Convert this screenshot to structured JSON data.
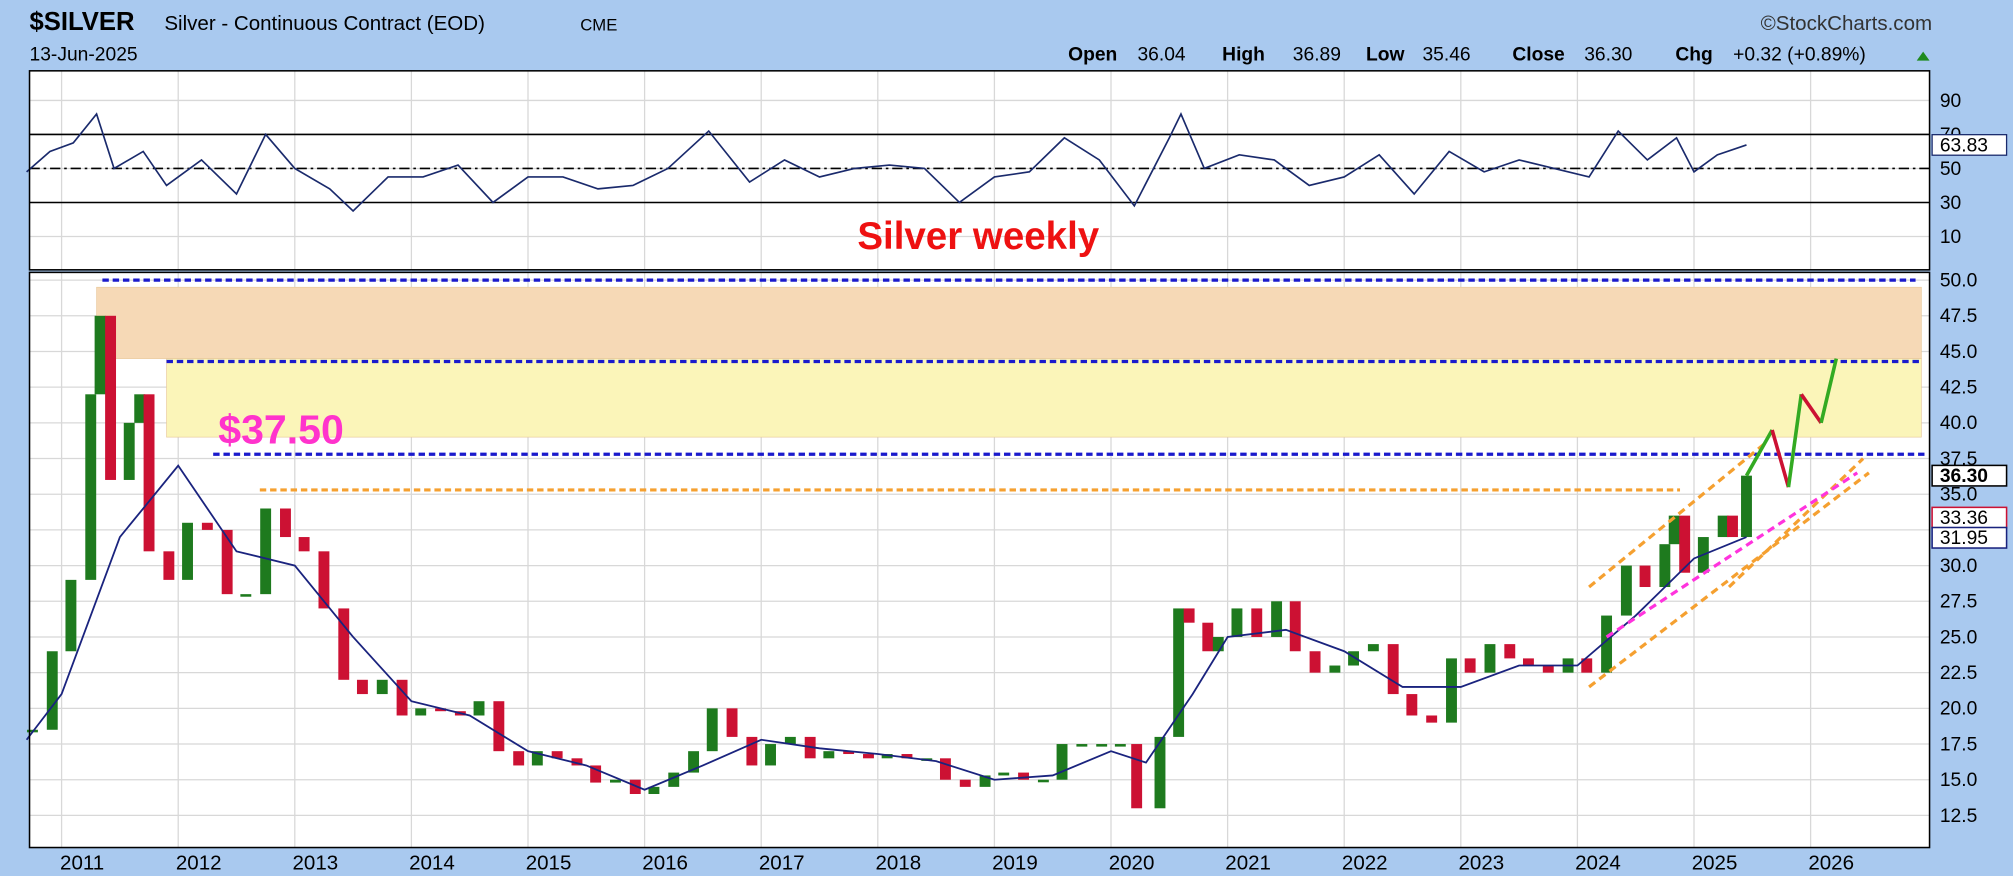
{
  "header": {
    "symbol": "$SILVER",
    "name": "Silver - Continuous Contract (EOD)",
    "exchange": "CME",
    "date": "13-Jun-2025",
    "source": "©StockCharts.com",
    "quote": [
      {
        "label": "Open",
        "value": "36.04"
      },
      {
        "label": "High",
        "value": "36.89"
      },
      {
        "label": "Low",
        "value": "35.46"
      },
      {
        "label": "Close",
        "value": "36.30"
      },
      {
        "label": "Chg",
        "value": "+0.32 (+0.89%)"
      }
    ]
  },
  "chart_data": [
    {
      "type": "line",
      "xlim": [
        2010.725,
        2027.02
      ],
      "xticks": [
        2011,
        2012,
        2013,
        2014,
        2015,
        2016,
        2017,
        2018,
        2019,
        2020,
        2021,
        2022,
        2023,
        2024,
        2025,
        2026
      ],
      "ylim": [
        -9.6,
        107.4
      ],
      "yticks": [
        10,
        30,
        50,
        70,
        90
      ],
      "grid": true,
      "x": [
        2010.7,
        2010.9,
        2011.1,
        2011.3,
        2011.45,
        2011.7,
        2011.9,
        2012.2,
        2012.5,
        2012.75,
        2013.0,
        2013.3,
        2013.5,
        2013.8,
        2014.1,
        2014.4,
        2014.7,
        2015.0,
        2015.3,
        2015.6,
        2015.9,
        2016.2,
        2016.55,
        2016.9,
        2017.2,
        2017.5,
        2017.8,
        2018.1,
        2018.4,
        2018.7,
        2019.0,
        2019.3,
        2019.6,
        2019.9,
        2020.2,
        2020.5,
        2020.6,
        2020.8,
        2021.1,
        2021.4,
        2021.7,
        2022.0,
        2022.3,
        2022.6,
        2022.9,
        2023.2,
        2023.5,
        2023.8,
        2024.1,
        2024.35,
        2024.6,
        2024.85,
        2025.0,
        2025.2,
        2025.45
      ],
      "series": [
        {
          "color": "#1a2a6c",
          "values": [
            48,
            60,
            65,
            82,
            50,
            60,
            40,
            55,
            35,
            70,
            50,
            38,
            25,
            45,
            45,
            52,
            30,
            45,
            45,
            38,
            40,
            50,
            72,
            42,
            55,
            45,
            50,
            52,
            50,
            30,
            45,
            48,
            68,
            55,
            28,
            68,
            82,
            50,
            58,
            55,
            40,
            45,
            58,
            35,
            60,
            48,
            55,
            50,
            45,
            72,
            55,
            68,
            48,
            58,
            63.83
          ]
        }
      ],
      "hlines": [
        {
          "value": 70,
          "style": "solid"
        },
        {
          "value": 30,
          "style": "solid"
        },
        {
          "value": 50,
          "style": "dashdot"
        }
      ],
      "last_label": {
        "value": 63.83,
        "color": "#1a2a6c"
      },
      "annotations": [
        {
          "text": "Silver weekly",
          "color": "#ee1111"
        }
      ]
    },
    {
      "type": "candlestick",
      "xlim": [
        2010.725,
        2027.02
      ],
      "xticks": [
        2011,
        2012,
        2013,
        2014,
        2015,
        2016,
        2017,
        2018,
        2019,
        2020,
        2021,
        2022,
        2023,
        2024,
        2025,
        2026
      ],
      "ylim": [
        10.25,
        50.54
      ],
      "yticks": [
        12.5,
        {
          "value": 15,
          "label": "15.0"
        },
        17.5,
        {
          "value": 20,
          "label": "20.0"
        },
        22.5,
        {
          "value": 25,
          "label": "25.0"
        },
        27.5,
        {
          "value": 30,
          "label": "30.0"
        },
        32.5,
        {
          "value": 35,
          "label": "35.0"
        },
        37.5,
        {
          "value": 40,
          "label": "40.0"
        },
        42.5,
        {
          "value": 45,
          "label": "45.0"
        },
        47.5,
        {
          "value": 50,
          "label": "50.0"
        }
      ],
      "grid": true,
      "x": [
        2010.75,
        2010.92,
        2011.08,
        2011.25,
        2011.33,
        2011.42,
        2011.58,
        2011.67,
        2011.75,
        2011.92,
        2012.08,
        2012.25,
        2012.42,
        2012.58,
        2012.75,
        2012.92,
        2013.08,
        2013.25,
        2013.42,
        2013.58,
        2013.75,
        2013.92,
        2014.08,
        2014.25,
        2014.42,
        2014.58,
        2014.75,
        2014.92,
        2015.08,
        2015.25,
        2015.42,
        2015.58,
        2015.75,
        2015.92,
        2016.08,
        2016.25,
        2016.42,
        2016.58,
        2016.75,
        2016.92,
        2017.08,
        2017.25,
        2017.42,
        2017.58,
        2017.75,
        2017.92,
        2018.08,
        2018.25,
        2018.42,
        2018.58,
        2018.75,
        2018.92,
        2019.08,
        2019.25,
        2019.42,
        2019.58,
        2019.75,
        2019.92,
        2020.08,
        2020.22,
        2020.42,
        2020.58,
        2020.67,
        2020.83,
        2020.92,
        2021.08,
        2021.25,
        2021.42,
        2021.58,
        2021.75,
        2021.92,
        2022.08,
        2022.25,
        2022.42,
        2022.58,
        2022.75,
        2022.92,
        2023.08,
        2023.25,
        2023.42,
        2023.58,
        2023.75,
        2023.92,
        2024.08,
        2024.25,
        2024.42,
        2024.58,
        2024.75,
        2024.83,
        2024.92,
        2025.08,
        2025.25,
        2025.33,
        2025.45
      ],
      "series": [
        {
          "color_up": "#1e7a1e",
          "color_down": "#cc1133",
          "values": [
            18.5,
            24,
            29,
            42,
            47.5,
            36,
            40,
            42,
            31,
            29,
            33,
            32.5,
            28,
            28,
            34,
            32,
            31,
            27,
            22,
            21,
            22,
            19.5,
            20,
            19.8,
            19.5,
            20.5,
            17,
            16,
            17,
            16.5,
            16,
            14.8,
            15,
            14,
            14.5,
            15.5,
            17,
            20,
            18,
            16,
            17.5,
            18,
            16.5,
            17,
            16.8,
            16.5,
            16.8,
            16.5,
            16.5,
            15,
            14.5,
            15.3,
            15.5,
            15,
            15,
            17.5,
            17.5,
            17.5,
            17.5,
            13,
            18,
            27,
            26,
            24,
            25,
            27,
            25,
            27.5,
            24,
            22.5,
            23,
            24,
            24.5,
            21,
            19.5,
            19,
            23.5,
            22.5,
            24.5,
            23.5,
            23,
            22.5,
            23.5,
            22.5,
            26.5,
            30,
            28.5,
            31.5,
            33.5,
            29.5,
            32,
            33.5,
            32,
            36.3
          ]
        },
        {
          "color": "#1a237e",
          "x": [
            2010.7,
            2011.0,
            2011.5,
            2012.0,
            2012.5,
            2013.0,
            2013.5,
            2014.0,
            2014.5,
            2015.0,
            2015.5,
            2016.0,
            2016.5,
            2017.0,
            2017.5,
            2018.0,
            2018.5,
            2019.0,
            2019.5,
            2020.0,
            2020.3,
            2020.7,
            2021.0,
            2021.5,
            2022.0,
            2022.5,
            2023.0,
            2023.5,
            2024.0,
            2024.5,
            2025.0,
            2025.45
          ],
          "values": [
            17.8,
            21,
            32,
            37,
            31,
            30,
            25,
            20.5,
            19.5,
            17,
            16,
            14.3,
            16,
            17.8,
            17.2,
            16.8,
            16.3,
            15,
            15.3,
            17,
            16.2,
            21,
            25,
            25.5,
            24,
            21.5,
            21.5,
            23,
            23,
            26.5,
            30.5,
            32
          ]
        }
      ],
      "bands": [
        {
          "from": 44.5,
          "to": 49.5,
          "x": [
            2011.3,
            2026.95
          ],
          "color": "#f6d9b6"
        },
        {
          "from": 39,
          "to": 44.5,
          "x": [
            2011.9,
            2026.95
          ],
          "color": "#fbf5b9"
        }
      ],
      "hlines": [
        {
          "value": 50,
          "x": [
            2011.35,
            2026.9
          ],
          "color": "#1a1acc"
        },
        {
          "value": 44.3,
          "x": [
            2011.9,
            2026.95
          ],
          "color": "#1a1acc"
        },
        {
          "value": 37.8,
          "x": [
            2012.3,
            2027.0
          ],
          "color": "#1a1acc"
        },
        {
          "value": 35.3,
          "x": [
            2012.7,
            2024.88
          ],
          "color": "#f5a030"
        }
      ],
      "segments": [
        {
          "points": [
            [
              2024.1,
              21.5
            ],
            [
              2026.5,
              36.5
            ]
          ],
          "color": "#f5a030",
          "dash": true
        },
        {
          "points": [
            [
              2024.1,
              28.5
            ],
            [
              2025.6,
              38.5
            ]
          ],
          "color": "#f5a030",
          "dash": true
        },
        {
          "points": [
            [
              2025.3,
              28.5
            ],
            [
              2026.45,
              37.5
            ]
          ],
          "color": "#f5a030",
          "dash": true
        },
        {
          "points": [
            [
              2024.25,
              25
            ],
            [
              2026.4,
              36.5
            ]
          ],
          "color": "#ff33dd",
          "dash": true
        },
        {
          "points": [
            [
              2025.45,
              36.3
            ],
            [
              2025.67,
              39.5
            ]
          ],
          "color": "#33aa22",
          "dash": false
        },
        {
          "points": [
            [
              2025.67,
              39.5
            ],
            [
              2025.81,
              35.5
            ]
          ],
          "color": "#cc1133",
          "dash": false
        },
        {
          "points": [
            [
              2025.81,
              35.5
            ],
            [
              2025.92,
              42
            ]
          ],
          "color": "#33aa22",
          "dash": false
        },
        {
          "points": [
            [
              2025.92,
              42
            ],
            [
              2026.09,
              40
            ]
          ],
          "color": "#cc1133",
          "dash": false
        },
        {
          "points": [
            [
              2026.09,
              40
            ],
            [
              2026.22,
              44.5
            ]
          ],
          "color": "#33aa22",
          "dash": false
        }
      ],
      "price_labels": [
        {
          "value": 36.3,
          "label": "36.30",
          "color": "#000000"
        },
        {
          "value": 33.36,
          "label": "33.36",
          "color": "#cc1133"
        },
        {
          "value": 31.95,
          "label": "31.95",
          "color": "#1a237e"
        }
      ],
      "annotations": [
        {
          "text": "$37.50",
          "color": "#ff33cc"
        }
      ]
    }
  ]
}
